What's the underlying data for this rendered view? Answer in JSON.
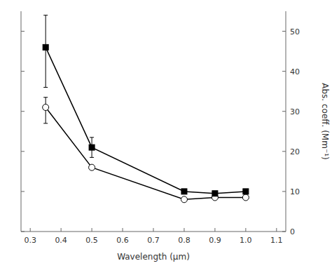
{
  "chart_data": {
    "type": "line",
    "xlabel": "Wavelength (μm)",
    "ylabel": "Abs. coeff. (Mm⁻¹)",
    "x": [
      0.35,
      0.5,
      0.8,
      0.9,
      1.0
    ],
    "series": [
      {
        "values": [
          31,
          16,
          8.0,
          8.5,
          8.5
        ],
        "error_upper": [
          2.5,
          0,
          0,
          0,
          0
        ],
        "error_lower": [
          4.0,
          0,
          0,
          0,
          0
        ],
        "marker": "open-circle",
        "color": "black"
      },
      {
        "values": [
          46,
          21,
          10,
          9.5,
          10
        ],
        "error_upper": [
          8,
          2.5,
          0,
          0,
          0
        ],
        "error_lower": [
          10,
          2.5,
          0,
          0,
          0
        ],
        "marker": "square",
        "color": "black"
      }
    ],
    "xlim": [
      0.27,
      1.13
    ],
    "ylim": [
      0,
      55
    ],
    "xticks": [
      0.3,
      0.4,
      0.5,
      0.6,
      0.7,
      0.8,
      0.9,
      {
        "value": 1.0,
        "label": "1.0"
      },
      1.1
    ],
    "yticks": [
      0,
      10,
      20,
      30,
      40,
      50
    ],
    "grid": false
  }
}
